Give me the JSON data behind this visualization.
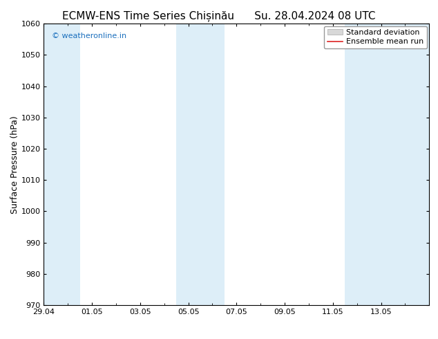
{
  "title_left": "ECMW-ENS Time Series Chișinău",
  "title_right": "Su. 28.04.2024 08 UTC",
  "ylabel": "Surface Pressure (hPa)",
  "ylim": [
    970,
    1060
  ],
  "yticks": [
    970,
    980,
    990,
    1000,
    1010,
    1020,
    1030,
    1040,
    1050,
    1060
  ],
  "xlim_days": 16,
  "xtick_labels": [
    "29.04",
    "01.05",
    "03.05",
    "05.05",
    "07.05",
    "09.05",
    "11.05",
    "13.05"
  ],
  "xtick_offsets": [
    0,
    2,
    4,
    6,
    8,
    10,
    12,
    14
  ],
  "shaded_bands": [
    {
      "x_start": 0,
      "x_end": 1.5,
      "color": "#ddeef8"
    },
    {
      "x_start": 5.5,
      "x_end": 7.5,
      "color": "#ddeef8"
    },
    {
      "x_start": 12.5,
      "x_end": 16,
      "color": "#ddeef8"
    }
  ],
  "watermark_text": "© weatheronline.in",
  "watermark_color": "#1a6fbd",
  "legend_items": [
    {
      "label": "Standard deviation",
      "type": "patch",
      "facecolor": "#d8d8d8",
      "edgecolor": "#aaaaaa"
    },
    {
      "label": "Ensemble mean run",
      "type": "line",
      "color": "#dd2222"
    }
  ],
  "bg_color": "#ffffff",
  "plot_bg_color": "#ffffff",
  "tick_color": "#000000",
  "spine_color": "#000000",
  "title_fontsize": 11,
  "tick_fontsize": 8,
  "ylabel_fontsize": 9,
  "watermark_fontsize": 8,
  "legend_fontsize": 8
}
